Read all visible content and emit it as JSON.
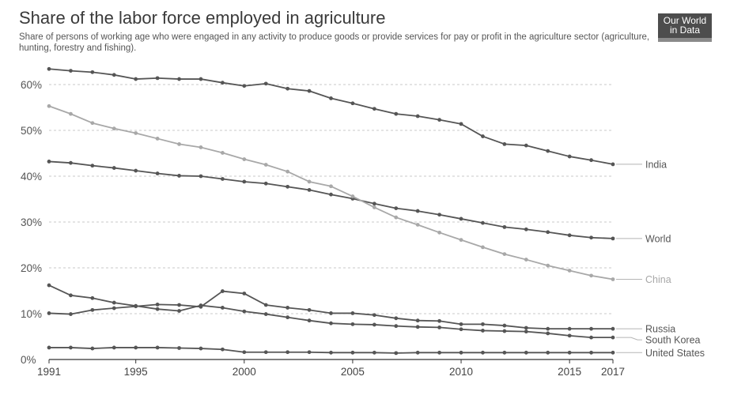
{
  "header": {
    "title": "Share of the labor force employed in agriculture",
    "subtitle": "Share of persons of working age who were engaged in any activity to produce goods or provide services for pay or profit in the agriculture sector (agriculture, hunting, forestry and fishing).",
    "logo_line1": "Our World",
    "logo_line2": "in Data"
  },
  "colors": {
    "dark_series": "#555555",
    "light_series": "#a8a8a8",
    "grid": "#c8c8c8",
    "axis": "#333333"
  },
  "chart_data": {
    "type": "line",
    "title": "Share of the labor force employed in agriculture",
    "subtitle": "Share of persons of working age who were engaged in any activity to produce goods or provide services for pay or profit in the agriculture sector (agriculture, hunting, forestry and fishing).",
    "xlabel": "",
    "ylabel": "",
    "xlim": [
      1991,
      2017
    ],
    "ylim": [
      0,
      60
    ],
    "x_ticks": [
      "1991",
      "1995",
      "2000",
      "2005",
      "2010",
      "2015",
      "2017"
    ],
    "y_ticks": [
      "0%",
      "10%",
      "20%",
      "30%",
      "40%",
      "50%",
      "60%"
    ],
    "grid": true,
    "legend": "inline-right",
    "x": [
      1991,
      1992,
      1993,
      1994,
      1995,
      1996,
      1997,
      1998,
      1999,
      2000,
      2001,
      2002,
      2003,
      2004,
      2005,
      2006,
      2007,
      2008,
      2009,
      2010,
      2011,
      2012,
      2013,
      2014,
      2015,
      2016,
      2017
    ],
    "series": [
      {
        "name": "India",
        "tone": "dark",
        "values": [
          63.4,
          63.0,
          62.7,
          62.1,
          61.2,
          61.4,
          61.2,
          61.2,
          60.4,
          59.7,
          60.2,
          59.1,
          58.6,
          57.0,
          55.9,
          54.7,
          53.6,
          53.1,
          52.3,
          51.4,
          48.7,
          47.0,
          46.7,
          45.5,
          44.3,
          43.5,
          42.6
        ]
      },
      {
        "name": "World",
        "tone": "dark",
        "values": [
          43.2,
          42.9,
          42.3,
          41.8,
          41.2,
          40.6,
          40.1,
          40.0,
          39.4,
          38.8,
          38.4,
          37.7,
          37.0,
          36.0,
          35.1,
          34.0,
          33.0,
          32.4,
          31.6,
          30.7,
          29.8,
          28.9,
          28.4,
          27.8,
          27.1,
          26.6,
          26.4
        ]
      },
      {
        "name": "China",
        "tone": "light",
        "values": [
          55.3,
          53.6,
          51.6,
          50.4,
          49.4,
          48.2,
          47.0,
          46.3,
          45.1,
          43.7,
          42.5,
          41.0,
          38.8,
          37.8,
          35.6,
          33.2,
          31.0,
          29.4,
          27.7,
          26.1,
          24.5,
          23.0,
          21.8,
          20.5,
          19.4,
          18.3,
          17.5
        ]
      },
      {
        "name": "Russia",
        "tone": "dark",
        "values": [
          10.1,
          9.9,
          10.8,
          11.2,
          11.6,
          12.0,
          11.9,
          11.5,
          14.9,
          14.4,
          11.9,
          11.3,
          10.8,
          10.1,
          10.1,
          9.7,
          9.0,
          8.5,
          8.4,
          7.7,
          7.7,
          7.4,
          6.9,
          6.7,
          6.7,
          6.7,
          6.7
        ]
      },
      {
        "name": "South Korea",
        "tone": "dark",
        "values": [
          16.2,
          14.0,
          13.4,
          12.4,
          11.7,
          11.0,
          10.6,
          11.8,
          11.3,
          10.5,
          9.9,
          9.2,
          8.5,
          7.9,
          7.7,
          7.6,
          7.3,
          7.1,
          7.0,
          6.6,
          6.3,
          6.2,
          6.1,
          5.7,
          5.2,
          4.8,
          4.8
        ]
      },
      {
        "name": "United States",
        "tone": "dark",
        "values": [
          2.6,
          2.6,
          2.4,
          2.6,
          2.6,
          2.6,
          2.5,
          2.4,
          2.2,
          1.6,
          1.6,
          1.6,
          1.6,
          1.5,
          1.5,
          1.5,
          1.4,
          1.5,
          1.5,
          1.5,
          1.5,
          1.5,
          1.5,
          1.5,
          1.5,
          1.5,
          1.5
        ]
      }
    ]
  }
}
